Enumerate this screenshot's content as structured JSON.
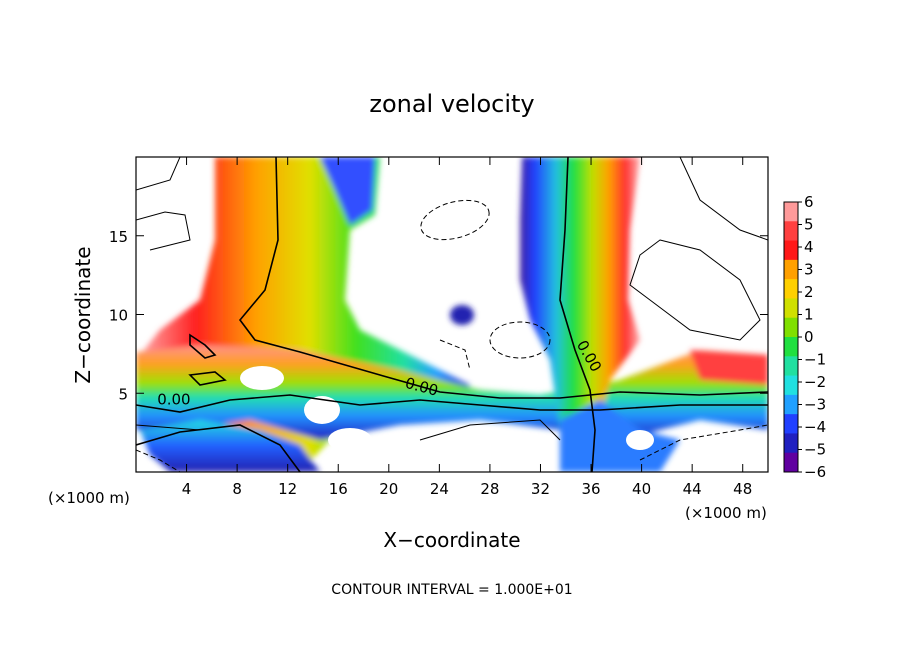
{
  "chart_data": {
    "type": "heatmap",
    "title": "zonal velocity",
    "xlabel": "X−coordinate",
    "ylabel": "Z−coordinate",
    "x_unit_left": "(×1000 m)",
    "x_unit_right": "(×1000 m)",
    "xlim": [
      0,
      50
    ],
    "ylim": [
      0,
      20
    ],
    "x_ticks": [
      4,
      8,
      12,
      16,
      20,
      24,
      28,
      32,
      36,
      40,
      44,
      48
    ],
    "x_tick_labels": [
      "4",
      "8",
      "12",
      "16",
      "20",
      "24",
      "28",
      "32",
      "36",
      "40",
      "44",
      "48"
    ],
    "y_ticks": [
      5,
      10,
      15
    ],
    "y_tick_labels": [
      "5",
      "10",
      "15"
    ],
    "colorbar": {
      "min": -6,
      "max": 6,
      "levels": [
        6,
        5,
        4,
        3,
        2,
        1,
        0,
        -1,
        -2,
        -3,
        -4,
        -5,
        -6
      ],
      "labels": [
        "6",
        "5",
        "4",
        "3",
        "2",
        "1",
        "0",
        "−1",
        "−2",
        "−3",
        "−4",
        "−5",
        "−6"
      ]
    },
    "contour_labels": [
      "0.00",
      "0.00",
      "0.00"
    ],
    "contour_label_positions": [
      [
        3,
        4.3
      ],
      [
        22.5,
        5.1
      ],
      [
        35.5,
        7.2
      ]
    ],
    "footer": "CONTOUR INTERVAL = 1.000E+01"
  }
}
